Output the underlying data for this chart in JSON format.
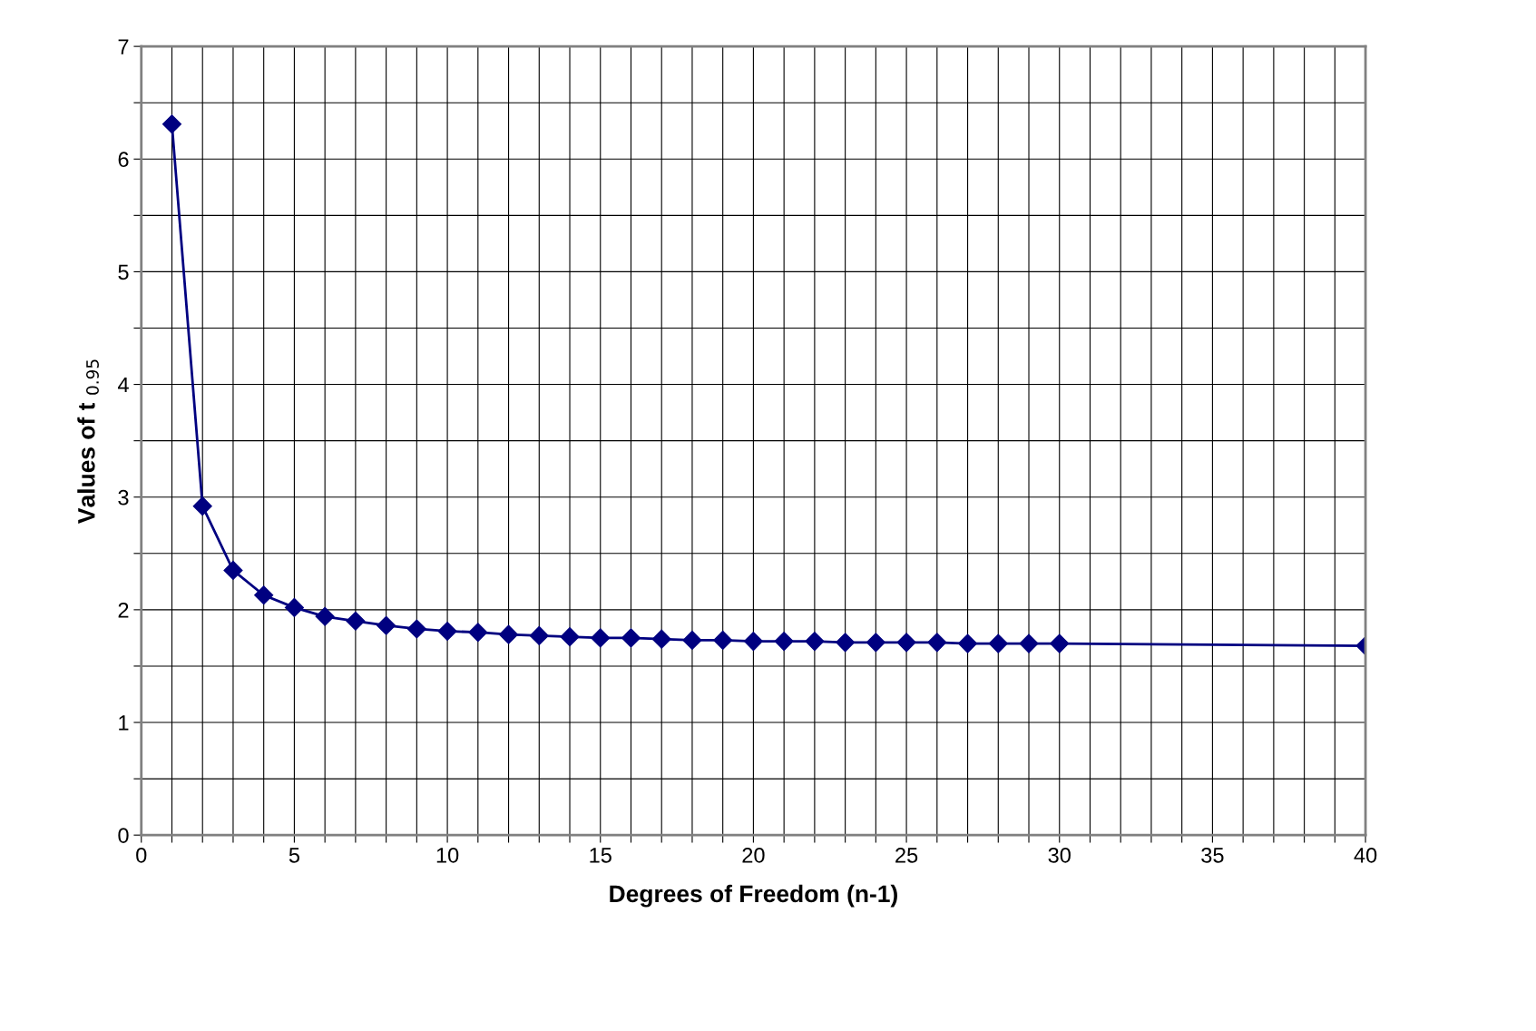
{
  "chart_data": {
    "type": "line",
    "xlabel": "Degrees of Freedom (n-1)",
    "ylabel": "Values of t $_{0.95}$",
    "x": [
      1,
      2,
      3,
      4,
      5,
      6,
      7,
      8,
      9,
      10,
      11,
      12,
      13,
      14,
      15,
      16,
      17,
      18,
      19,
      20,
      21,
      22,
      23,
      24,
      25,
      26,
      27,
      28,
      29,
      30,
      40
    ],
    "series": [
      {
        "color": "#000080",
        "values": [
          6.31,
          2.92,
          2.35,
          2.13,
          2.02,
          1.94,
          1.9,
          1.86,
          1.83,
          1.81,
          1.8,
          1.78,
          1.77,
          1.76,
          1.75,
          1.75,
          1.74,
          1.73,
          1.73,
          1.72,
          1.72,
          1.72,
          1.71,
          1.71,
          1.71,
          1.71,
          1.7,
          1.7,
          1.7,
          1.7,
          1.68
        ]
      }
    ],
    "xlim": [
      0,
      40
    ],
    "ylim": [
      0,
      7
    ],
    "xticks": [
      0,
      {
        "value": 1,
        "label": null
      },
      {
        "value": 2,
        "label": null
      },
      {
        "value": 3,
        "label": null
      },
      {
        "value": 4,
        "label": null
      },
      5,
      {
        "value": 6,
        "label": null
      },
      {
        "value": 7,
        "label": null
      },
      {
        "value": 8,
        "label": null
      },
      {
        "value": 9,
        "label": null
      },
      10,
      {
        "value": 11,
        "label": null
      },
      {
        "value": 12,
        "label": null
      },
      {
        "value": 13,
        "label": null
      },
      {
        "value": 14,
        "label": null
      },
      15,
      {
        "value": 16,
        "label": null
      },
      {
        "value": 17,
        "label": null
      },
      {
        "value": 18,
        "label": null
      },
      {
        "value": 19,
        "label": null
      },
      20,
      {
        "value": 21,
        "label": null
      },
      {
        "value": 22,
        "label": null
      },
      {
        "value": 23,
        "label": null
      },
      {
        "value": 24,
        "label": null
      },
      25,
      {
        "value": 26,
        "label": null
      },
      {
        "value": 27,
        "label": null
      },
      {
        "value": 28,
        "label": null
      },
      {
        "value": 29,
        "label": null
      },
      30,
      {
        "value": 31,
        "label": null
      },
      {
        "value": 32,
        "label": null
      },
      {
        "value": 33,
        "label": null
      },
      {
        "value": 34,
        "label": null
      },
      35,
      {
        "value": 36,
        "label": null
      },
      {
        "value": 37,
        "label": null
      },
      {
        "value": 38,
        "label": null
      },
      {
        "value": 39,
        "label": null
      },
      40
    ],
    "yticks": [
      0,
      {
        "value": 0.5,
        "label": null
      },
      1,
      {
        "value": 1.5,
        "label": null
      },
      2,
      {
        "value": 2.5,
        "label": null
      },
      3,
      {
        "value": 3.5,
        "label": null
      },
      4,
      {
        "value": 4.5,
        "label": null
      },
      5,
      {
        "value": 5.5,
        "label": null
      },
      6,
      {
        "value": 6.5,
        "label": null
      },
      7
    ],
    "grid": true,
    "marker": "diamond",
    "line_style": "solid",
    "legend": false
  }
}
